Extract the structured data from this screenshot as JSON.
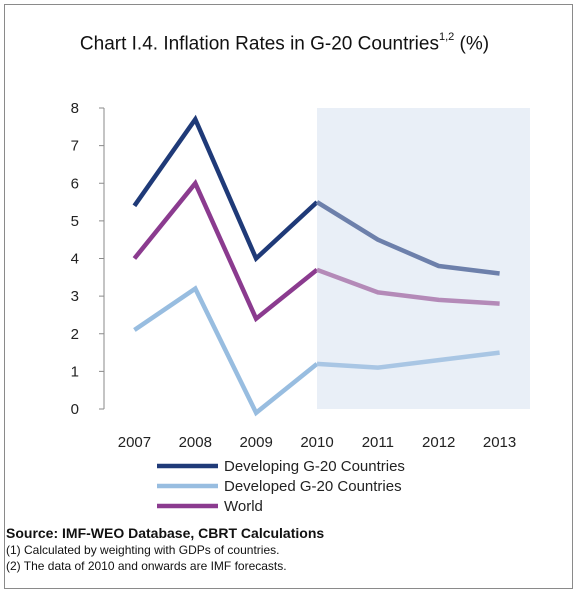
{
  "title": {
    "text": "Chart I.4. Inflation Rates in G-20 Countries",
    "sup": "1,2",
    "suffix": " (%)"
  },
  "chart_data": {
    "type": "line",
    "x": [
      "2007",
      "2008",
      "2009",
      "2010",
      "2011",
      "2012",
      "2013"
    ],
    "ylim": [
      0,
      8
    ],
    "yticks": [
      "0",
      "1",
      "2",
      "3",
      "4",
      "5",
      "6",
      "7",
      "8"
    ],
    "forecast_start": "2010",
    "legend_placement": "bottom",
    "series": [
      {
        "name": "Developing G-20 Countries",
        "values": [
          5.4,
          7.7,
          4.0,
          5.5,
          4.5,
          3.8,
          3.6
        ],
        "color": "#1f3a78",
        "forecast_color": "#6d80ab"
      },
      {
        "name": "Developed G-20 Countries",
        "values": [
          2.1,
          3.2,
          -0.1,
          1.2,
          1.1,
          1.3,
          1.5
        ],
        "color": "#98bde0",
        "forecast_color": "#a9c6e4"
      },
      {
        "name": "World",
        "values": [
          4.0,
          6.0,
          2.4,
          3.7,
          3.1,
          2.9,
          2.8
        ],
        "color": "#8b3b8f",
        "forecast_color": "#b48ab8"
      }
    ],
    "shade_color": "#e9eff7"
  },
  "source": {
    "title": "Source: IMF-WEO Database, CBRT Calculations",
    "note1": "(1) Calculated by weighting with GDPs of countries.",
    "note2": "(2) The data of 2010 and onwards are IMF forecasts."
  }
}
